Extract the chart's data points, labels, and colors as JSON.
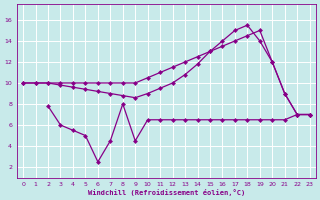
{
  "xlabel": "Windchill (Refroidissement éolien,°C)",
  "bg_color": "#c8eaea",
  "line_color": "#880088",
  "grid_color": "#ffffff",
  "xlim_min": -0.5,
  "xlim_max": 23.5,
  "ylim_min": 1.0,
  "ylim_max": 17.5,
  "yticks": [
    2,
    4,
    6,
    8,
    10,
    12,
    14,
    16
  ],
  "xticks": [
    0,
    1,
    2,
    3,
    4,
    5,
    6,
    7,
    8,
    9,
    10,
    11,
    12,
    13,
    14,
    15,
    16,
    17,
    18,
    19,
    20,
    21,
    22,
    23
  ],
  "line1_x": [
    0,
    1,
    2,
    3,
    4,
    5,
    6,
    7,
    8,
    9,
    10,
    11,
    12,
    13,
    14,
    15,
    16,
    17,
    18,
    19,
    20,
    21,
    22,
    23
  ],
  "line1_y": [
    10,
    10,
    10,
    10,
    10,
    10,
    10,
    10,
    10,
    10,
    10.5,
    11.0,
    11.5,
    12.0,
    12.5,
    13.0,
    13.5,
    14.0,
    14.5,
    15.0,
    12.0,
    9.0,
    7.0,
    7.0
  ],
  "line2_x": [
    0,
    1,
    2,
    3,
    4,
    5,
    6,
    7,
    8,
    9,
    10,
    11,
    12,
    13,
    14,
    15,
    16,
    17,
    18,
    19,
    20,
    21,
    22,
    23
  ],
  "line2_y": [
    10,
    10,
    10,
    9.8,
    9.6,
    9.4,
    9.2,
    9.0,
    8.8,
    8.6,
    9.0,
    9.5,
    10.0,
    10.8,
    11.8,
    13.0,
    14.0,
    15.0,
    15.5,
    14.0,
    12.0,
    9.0,
    7.0,
    7.0
  ],
  "line3_x": [
    2,
    3,
    4,
    5,
    6,
    7,
    8,
    9,
    10,
    11,
    12,
    13,
    14,
    15,
    16,
    17,
    18,
    19,
    20,
    21,
    22,
    23
  ],
  "line3_y": [
    7.8,
    6.0,
    5.5,
    5.0,
    2.5,
    4.5,
    8.0,
    4.5,
    6.5,
    6.5,
    6.5,
    6.5,
    6.5,
    6.5,
    6.5,
    6.5,
    6.5,
    6.5,
    6.5,
    6.5,
    7.0,
    7.0
  ]
}
